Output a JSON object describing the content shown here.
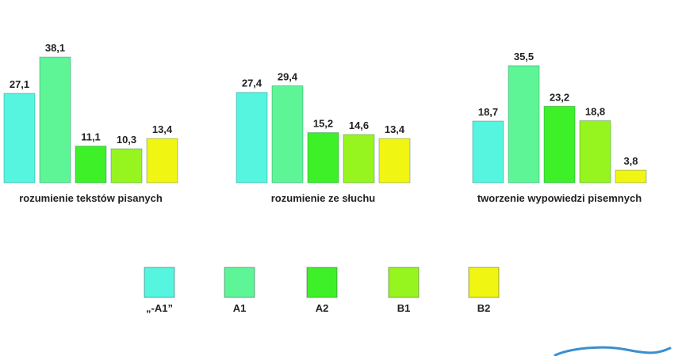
{
  "chart_data": {
    "type": "bar",
    "title": "",
    "xlabel": "",
    "ylabel": "",
    "ylim": [
      0,
      40
    ],
    "grid": false,
    "legend_position": "bottom",
    "categories": [
      "rozumienie tekstów pisanych",
      "rozumienie ze słuchu",
      "tworzenie wypowiedzi pisemnych"
    ],
    "series": [
      {
        "name": "„-A1”",
        "color": "#55f5e0",
        "values": [
          27.1,
          27.4,
          18.7
        ],
        "labels": [
          "27,1",
          "27,4",
          "18,7"
        ]
      },
      {
        "name": "A1",
        "color": "#5ef597",
        "values": [
          38.1,
          29.4,
          35.5
        ],
        "labels": [
          "38,1",
          "29,4",
          "35,5"
        ]
      },
      {
        "name": "A2",
        "color": "#3ef028",
        "values": [
          11.1,
          15.2,
          23.2
        ],
        "labels": [
          "11,1",
          "15,2",
          "23,2"
        ]
      },
      {
        "name": "B1",
        "color": "#96f51e",
        "values": [
          10.3,
          14.6,
          18.8
        ],
        "labels": [
          "10,3",
          "14,6",
          "18,8"
        ]
      },
      {
        "name": "B2",
        "color": "#f0f511",
        "values": [
          13.4,
          13.4,
          3.8
        ],
        "labels": [
          "13,4",
          "13,4",
          "3,8"
        ]
      }
    ]
  }
}
